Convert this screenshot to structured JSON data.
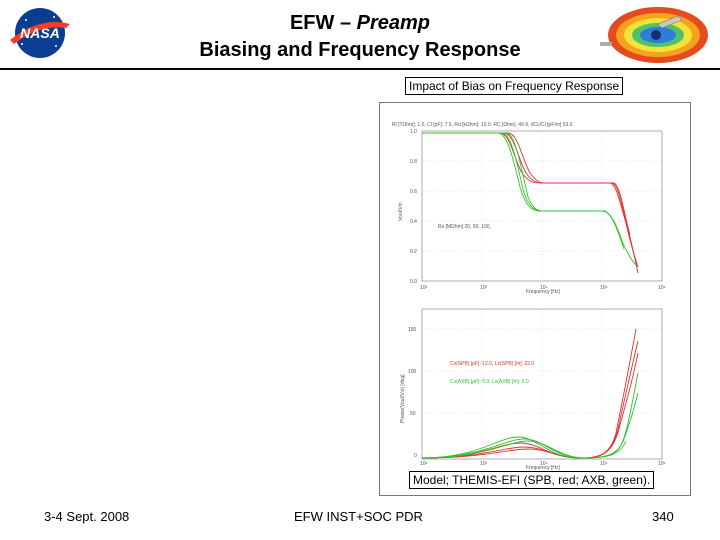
{
  "header": {
    "title_line1_prefix": "EFW – ",
    "title_line1_italic": "Preamp",
    "title_line2": "Biasing and Frequency Response",
    "logo_text": "NASA"
  },
  "figure": {
    "caption_top": "Impact of Bias on Frequency Response",
    "caption_bottom": "Model; THEMIS-EFI (SPB, red; AXB, green).",
    "top_plot": {
      "header_text": "Rl [TΩhm]: 1.0,  Cl [pF]: 7.5,  Rd [kΩhm]: 10.0,  RC [Ωhm]: 49.9,  dCc/Cl [pF/m] 53.0",
      "ylabel": "Vout/Vin",
      "xlabel": "Frequency [Hz]",
      "annotation": "Rs [MΩhm] 20, 50, 100,",
      "yticks": [
        "1.0",
        "0.8",
        "0.6",
        "0.4",
        "0.2",
        "0.0"
      ],
      "xticks": [
        "10²",
        "10³",
        "10⁴",
        "10⁵",
        "10⁶"
      ]
    },
    "bottom_plot": {
      "ylabel": "Phase(Vout/Vin) [deg]",
      "xlabel": "Frequency [Hz]",
      "legend_red": "Cs(SPB) [pF]: 12.0,  Ls(SPB) [m]: 22.0",
      "legend_green": "Cs(AXB) [pF]: 5.0,  Ls(AXB) [m]: 5.0",
      "yticks": [
        "150",
        "100",
        "50",
        "0"
      ],
      "xticks": [
        "10²",
        "10³",
        "10⁴",
        "10⁵",
        "10⁶"
      ]
    },
    "colors": {
      "red": "#e03030",
      "green": "#30c030"
    }
  },
  "footer": {
    "date": "3-4 Sept. 2008",
    "event": "EFW INST+SOC PDR",
    "page": "340"
  }
}
